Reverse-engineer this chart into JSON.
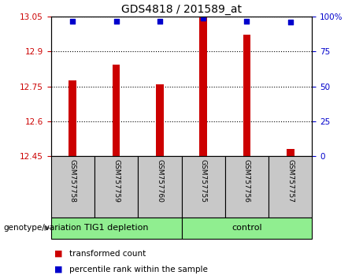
{
  "title": "GDS4818 / 201589_at",
  "samples": [
    "GSM757758",
    "GSM757759",
    "GSM757760",
    "GSM757755",
    "GSM757756",
    "GSM757757"
  ],
  "bar_values": [
    12.775,
    12.845,
    12.758,
    13.048,
    12.972,
    12.482
  ],
  "percentile_values": [
    97,
    97,
    97,
    99,
    97,
    96
  ],
  "bar_color": "#cc0000",
  "percentile_color": "#0000cc",
  "ylim_left": [
    12.45,
    13.05
  ],
  "ylim_right": [
    0,
    100
  ],
  "yticks_left": [
    12.45,
    12.6,
    12.75,
    12.9,
    13.05
  ],
  "yticks_right": [
    0,
    25,
    50,
    75,
    100
  ],
  "group_boundaries": [
    [
      -0.5,
      2.5,
      "TIG1 depletion"
    ],
    [
      2.5,
      5.5,
      "control"
    ]
  ],
  "group_label": "genotype/variation",
  "legend_items": [
    {
      "label": "transformed count",
      "color": "#cc0000"
    },
    {
      "label": "percentile rank within the sample",
      "color": "#0000cc"
    }
  ],
  "bar_width": 0.18,
  "sample_box_color": "#c8c8c8",
  "group_color": "#90ee90"
}
